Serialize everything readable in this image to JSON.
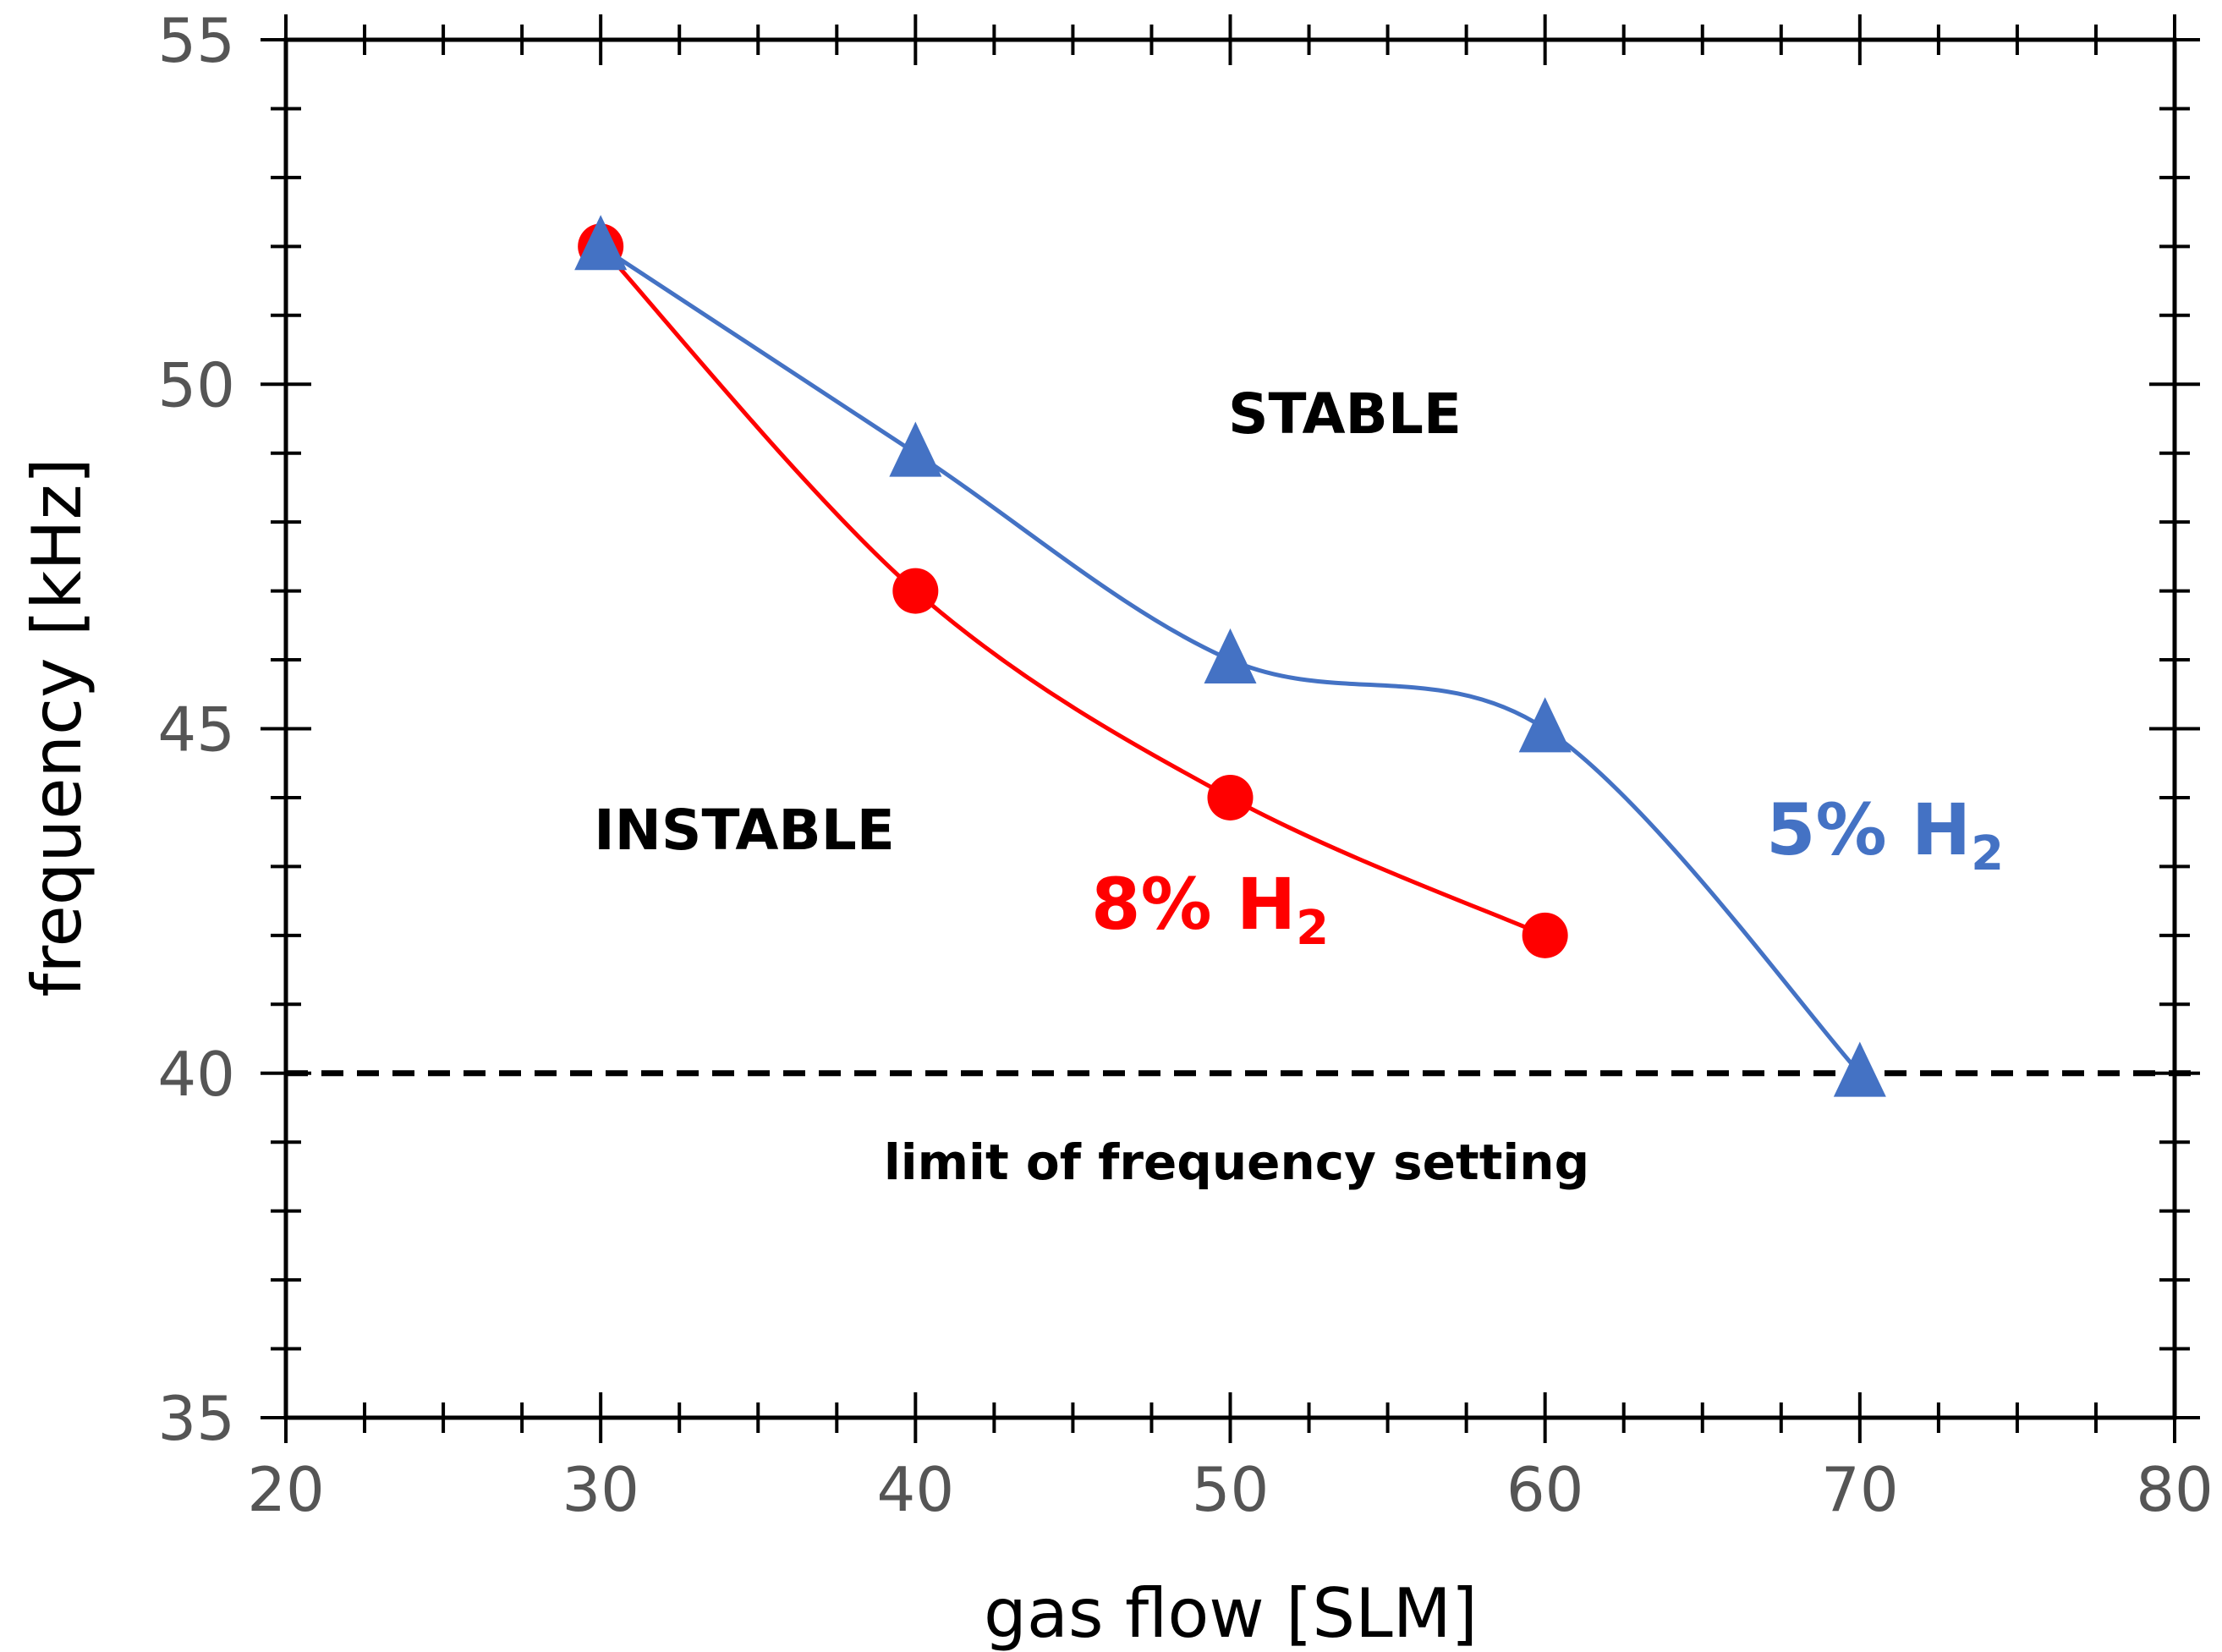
{
  "chart_data": {
    "type": "line",
    "title": "",
    "xlabel": "gas flow [SLM]",
    "ylabel": "frequency [kHz]",
    "xlim": [
      20,
      80
    ],
    "ylim": [
      35,
      55
    ],
    "x_major_ticks": [
      20,
      30,
      40,
      50,
      60,
      70,
      80
    ],
    "y_major_ticks": [
      35,
      40,
      45,
      50,
      55
    ],
    "grid": false,
    "series": [
      {
        "name_main": "8% H",
        "name_sub": "2",
        "color": "#ff0000",
        "marker": "circle",
        "x": [
          30,
          40,
          50,
          60
        ],
        "y": [
          52,
          47,
          44,
          42
        ]
      },
      {
        "name_main": "5% H",
        "name_sub": "2",
        "color": "#4472c4",
        "marker": "triangle",
        "x": [
          30,
          40,
          50,
          60,
          70
        ],
        "y": [
          52,
          49,
          46,
          45,
          40
        ]
      }
    ],
    "reference_line": {
      "y": 40,
      "label": "limit of frequency setting",
      "color": "#000000",
      "style": "dashed"
    },
    "annotations": {
      "stable": "STABLE",
      "instable": "INSTABLE"
    }
  }
}
